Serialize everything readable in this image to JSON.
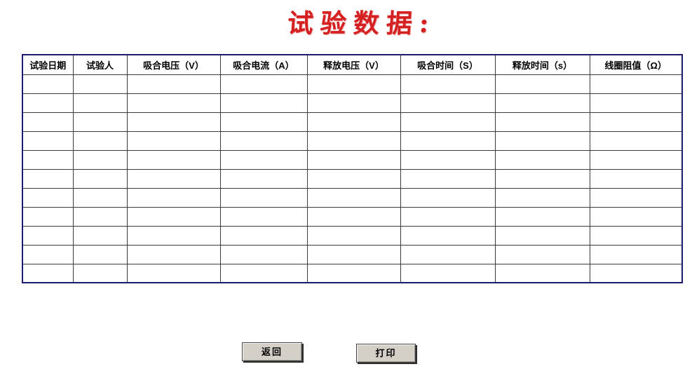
{
  "title": {
    "text": "试验数据:"
  },
  "colors": {
    "title_red": "#d42020",
    "table_border_navy": "#1b1b70",
    "grid_line": "#3c3c3c",
    "button_face": "#d4d0c8"
  },
  "table": {
    "headers": [
      "试验日期",
      "试验人",
      "吸合电压（V）",
      "吸合电流（A）",
      "释放电压（V）",
      "吸合时间（S）",
      "释放时间（s）",
      "线圈阻值（Ω）"
    ],
    "column_count": 8,
    "empty_row_count": 11,
    "cells": []
  },
  "buttons": {
    "back_label": "返回",
    "print_label": "打印"
  }
}
